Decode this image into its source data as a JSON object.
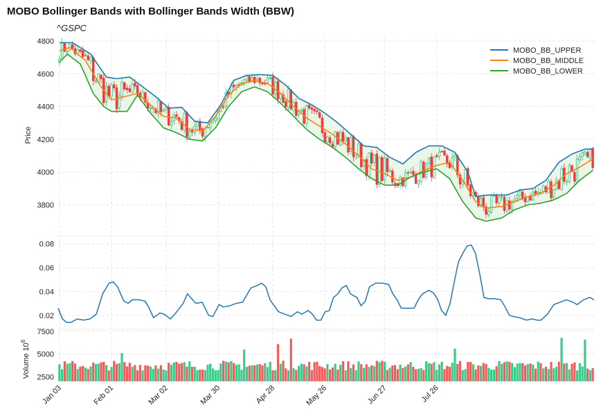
{
  "title": "MOBO Bollinger Bands with Bollinger Bands Width (BBW)",
  "subtitle": "^GSPC",
  "chart_data": [
    {
      "type": "candlestick",
      "panel": "price",
      "ylabel": "Price",
      "ylim": [
        3620,
        4830
      ],
      "yticks": [
        "3800",
        "4000",
        "4200",
        "4400",
        "4600",
        "4800"
      ],
      "xticks": [
        "Jan 03",
        "Feb 01",
        "Mar 02",
        "Mar 30",
        "Apr 28",
        "May 26",
        "Jun 27",
        "Jul 26"
      ],
      "legend": {
        "placement": "top-right"
      },
      "colors": {
        "up": "#2ec27e",
        "down": "#ef3b3b",
        "fill": "#e8f5e4"
      },
      "series": [
        {
          "name": "MOBO_BB_UPPER",
          "color": "#1f77b4",
          "anchors": [
            [
              0,
              4790
            ],
            [
              5,
              4790
            ],
            [
              12,
              4720
            ],
            [
              18,
              4580
            ],
            [
              22,
              4570
            ],
            [
              27,
              4580
            ],
            [
              32,
              4520
            ],
            [
              37,
              4460
            ],
            [
              42,
              4390
            ],
            [
              47,
              4395
            ],
            [
              52,
              4310
            ],
            [
              57,
              4300
            ],
            [
              62,
              4410
            ],
            [
              67,
              4560
            ],
            [
              72,
              4590
            ],
            [
              77,
              4595
            ],
            [
              82,
              4590
            ],
            [
              87,
              4530
            ],
            [
              92,
              4450
            ],
            [
              97,
              4410
            ],
            [
              102,
              4360
            ],
            [
              107,
              4300
            ],
            [
              112,
              4230
            ],
            [
              117,
              4160
            ],
            [
              122,
              4150
            ],
            [
              127,
              4090
            ],
            [
              132,
              4050
            ],
            [
              137,
              4120
            ],
            [
              142,
              4160
            ],
            [
              147,
              4160
            ],
            [
              152,
              4120
            ],
            [
              157,
              4000
            ],
            [
              160,
              3850
            ],
            [
              165,
              3860
            ],
            [
              172,
              3860
            ],
            [
              177,
              3890
            ],
            [
              182,
              3900
            ],
            [
              187,
              3950
            ],
            [
              192,
              4060
            ],
            [
              197,
              4110
            ],
            [
              202,
              4140
            ],
            [
              205,
              4140
            ]
          ]
        },
        {
          "name": "MOBO_BB_MIDDLE",
          "color": "#ff7f0e",
          "anchors": [
            [
              0,
              4740
            ],
            [
              4,
              4760
            ],
            [
              10,
              4680
            ],
            [
              16,
              4520
            ],
            [
              20,
              4440
            ],
            [
              25,
              4460
            ],
            [
              30,
              4480
            ],
            [
              35,
              4410
            ],
            [
              40,
              4340
            ],
            [
              45,
              4330
            ],
            [
              50,
              4260
            ],
            [
              55,
              4250
            ],
            [
              60,
              4340
            ],
            [
              65,
              4470
            ],
            [
              70,
              4540
            ],
            [
              75,
              4560
            ],
            [
              80,
              4540
            ],
            [
              85,
              4480
            ],
            [
              90,
              4400
            ],
            [
              95,
              4330
            ],
            [
              100,
              4280
            ],
            [
              105,
              4230
            ],
            [
              110,
              4170
            ],
            [
              115,
              4100
            ],
            [
              120,
              4020
            ],
            [
              125,
              3990
            ],
            [
              130,
              3950
            ],
            [
              135,
              3970
            ],
            [
              140,
              4010
            ],
            [
              145,
              4040
            ],
            [
              150,
              4060
            ],
            [
              155,
              3950
            ],
            [
              160,
              3820
            ],
            [
              164,
              3780
            ],
            [
              170,
              3790
            ],
            [
              175,
              3820
            ],
            [
              180,
              3850
            ],
            [
              185,
              3870
            ],
            [
              190,
              3920
            ],
            [
              195,
              3990
            ],
            [
              200,
              4030
            ],
            [
              205,
              4080
            ]
          ]
        },
        {
          "name": "MOBO_BB_LOWER",
          "color": "#2ca02c",
          "anchors": [
            [
              0,
              4670
            ],
            [
              3,
              4720
            ],
            [
              8,
              4660
            ],
            [
              13,
              4480
            ],
            [
              17,
              4400
            ],
            [
              20,
              4370
            ],
            [
              26,
              4370
            ],
            [
              30,
              4470
            ],
            [
              35,
              4360
            ],
            [
              40,
              4270
            ],
            [
              45,
              4240
            ],
            [
              50,
              4200
            ],
            [
              55,
              4190
            ],
            [
              60,
              4270
            ],
            [
              65,
              4400
            ],
            [
              70,
              4490
            ],
            [
              75,
              4520
            ],
            [
              80,
              4490
            ],
            [
              85,
              4420
            ],
            [
              90,
              4340
            ],
            [
              95,
              4260
            ],
            [
              100,
              4200
            ],
            [
              105,
              4150
            ],
            [
              110,
              4090
            ],
            [
              115,
              4020
            ],
            [
              120,
              3960
            ],
            [
              125,
              3920
            ],
            [
              130,
              3920
            ],
            [
              135,
              3970
            ],
            [
              140,
              4000
            ],
            [
              145,
              4020
            ],
            [
              150,
              3960
            ],
            [
              155,
              3820
            ],
            [
              160,
              3720
            ],
            [
              164,
              3700
            ],
            [
              170,
              3720
            ],
            [
              175,
              3770
            ],
            [
              180,
              3800
            ],
            [
              185,
              3810
            ],
            [
              190,
              3830
            ],
            [
              195,
              3870
            ],
            [
              200,
              3950
            ],
            [
              205,
              4010
            ]
          ]
        }
      ]
    },
    {
      "type": "line",
      "panel": "bbw",
      "ylim": [
        0.01,
        0.085
      ],
      "yticks": [
        "0.02",
        "0.04",
        "0.06",
        "0.08"
      ],
      "series": [
        {
          "name": "",
          "color": "#1f77b4",
          "anchors": [
            [
              0,
              0.026
            ],
            [
              2,
              0.017
            ],
            [
              4,
              0.014
            ],
            [
              6,
              0.014
            ],
            [
              9,
              0.017
            ],
            [
              12,
              0.016
            ],
            [
              15,
              0.017
            ],
            [
              18,
              0.021
            ],
            [
              21,
              0.038
            ],
            [
              24,
              0.047
            ],
            [
              26,
              0.048
            ],
            [
              28,
              0.044
            ],
            [
              31,
              0.032
            ],
            [
              33,
              0.03
            ],
            [
              35,
              0.033
            ],
            [
              38,
              0.033
            ],
            [
              41,
              0.032
            ],
            [
              43,
              0.026
            ],
            [
              45,
              0.018
            ],
            [
              48,
              0.022
            ],
            [
              50,
              0.021
            ],
            [
              53,
              0.017
            ],
            [
              56,
              0.023
            ],
            [
              59,
              0.03
            ],
            [
              61,
              0.038
            ],
            [
              63,
              0.034
            ],
            [
              65,
              0.03
            ],
            [
              68,
              0.031
            ],
            [
              71,
              0.02
            ],
            [
              73,
              0.019
            ],
            [
              76,
              0.029
            ],
            [
              78,
              0.027
            ],
            [
              81,
              0.028
            ],
            [
              84,
              0.03
            ],
            [
              87,
              0.031
            ],
            [
              89,
              0.037
            ],
            [
              91,
              0.043
            ],
            [
              94,
              0.045
            ],
            [
              96,
              0.047
            ],
            [
              98,
              0.044
            ],
            [
              100,
              0.033
            ],
            [
              102,
              0.028
            ],
            [
              104,
              0.023
            ],
            [
              107,
              0.021
            ],
            [
              110,
              0.019
            ],
            [
              113,
              0.023
            ],
            [
              115,
              0.021
            ],
            [
              118,
              0.024
            ],
            [
              120,
              0.021
            ],
            [
              122,
              0.016
            ],
            [
              124,
              0.016
            ],
            [
              126,
              0.023
            ],
            [
              128,
              0.024
            ],
            [
              130,
              0.035
            ],
            [
              132,
              0.038
            ],
            [
              134,
              0.043
            ],
            [
              136,
              0.045
            ],
            [
              138,
              0.038
            ],
            [
              141,
              0.035
            ],
            [
              143,
              0.028
            ],
            [
              145,
              0.032
            ],
            [
              147,
              0.044
            ],
            [
              150,
              0.047
            ],
            [
              153,
              0.047
            ],
            [
              156,
              0.046
            ],
            [
              158,
              0.038
            ],
            [
              160,
              0.033
            ],
            [
              162,
              0.026
            ],
            [
              165,
              0.026
            ],
            [
              168,
              0.026
            ],
            [
              170,
              0.033
            ],
            [
              172,
              0.038
            ],
            [
              175,
              0.041
            ],
            [
              177,
              0.039
            ],
            [
              179,
              0.034
            ],
            [
              181,
              0.024
            ],
            [
              183,
              0.02
            ],
            [
              185,
              0.03
            ],
            [
              187,
              0.048
            ],
            [
              189,
              0.065
            ],
            [
              191,
              0.072
            ],
            [
              193,
              0.078
            ],
            [
              195,
              0.079
            ],
            [
              197,
              0.072
            ],
            [
              199,
              0.055
            ],
            [
              201,
              0.035
            ],
            [
              203,
              0.034
            ],
            [
              206,
              0.034
            ],
            [
              209,
              0.033
            ],
            [
              211,
              0.027
            ],
            [
              213,
              0.02
            ],
            [
              215,
              0.019
            ],
            [
              218,
              0.018
            ],
            [
              221,
              0.016
            ],
            [
              224,
              0.017
            ],
            [
              226,
              0.016
            ],
            [
              228,
              0.016
            ],
            [
              231,
              0.021
            ],
            [
              234,
              0.029
            ],
            [
              237,
              0.031
            ],
            [
              240,
              0.033
            ],
            [
              243,
              0.031
            ],
            [
              245,
              0.029
            ],
            [
              248,
              0.033
            ],
            [
              251,
              0.035
            ],
            [
              253,
              0.033
            ]
          ]
        }
      ]
    },
    {
      "type": "bar",
      "panel": "volume",
      "ylabel": "Volume",
      "ylabel_exponent": "10^6",
      "ylim": [
        2000,
        7500
      ],
      "yticks": [
        "2500",
        "5000",
        "7500"
      ]
    }
  ]
}
